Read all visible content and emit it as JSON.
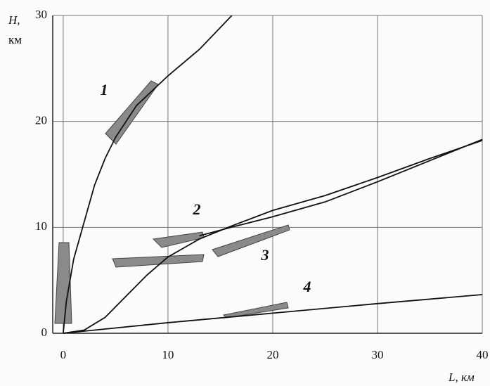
{
  "chart_data": {
    "type": "line",
    "y_label": "H,",
    "y_unit": "км",
    "x_label": "L, км",
    "xlim": [
      -1,
      40
    ],
    "ylim": [
      0,
      30
    ],
    "xticks": [
      0,
      10,
      20,
      30,
      40
    ],
    "yticks": [
      0,
      10,
      20,
      30
    ],
    "grid": true,
    "series": [
      {
        "name": "1",
        "color": "#111111",
        "x": [
          0,
          0.3,
          1,
          2,
          3,
          4,
          5,
          7,
          10,
          13,
          16.1
        ],
        "values": [
          0,
          3,
          7,
          10.5,
          14,
          16.5,
          18.5,
          21.5,
          24.3,
          26.8,
          30
        ]
      },
      {
        "name": "2",
        "color": "#111111",
        "x": [
          13,
          16,
          20,
          25,
          30,
          35,
          40
        ],
        "values": [
          9.2,
          10,
          11,
          12.4,
          14.3,
          16.3,
          18.3
        ]
      },
      {
        "name": "3",
        "color": "#111111",
        "x": [
          0,
          2,
          4,
          6,
          8,
          10,
          13,
          16,
          20,
          25,
          30,
          35,
          40
        ],
        "values": [
          0,
          0.3,
          1.5,
          3.5,
          5.5,
          7.2,
          8.9,
          10.1,
          11.6,
          13,
          14.7,
          16.5,
          18.2
        ]
      },
      {
        "name": "4",
        "color": "#111111",
        "x": [
          0,
          10,
          20,
          30,
          40
        ],
        "values": [
          0,
          1,
          1.9,
          2.8,
          3.65
        ]
      }
    ]
  }
}
